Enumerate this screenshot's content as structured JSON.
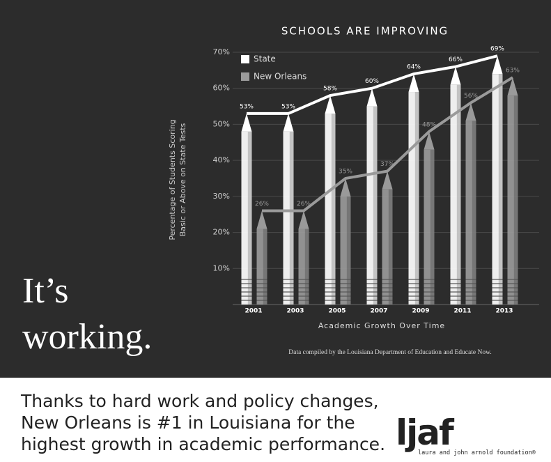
{
  "chart_data": {
    "type": "bar",
    "title": "SCHOOLS ARE IMPROVING",
    "ylabel": [
      "Percentage of Students Scoring",
      "Basic or Above on State Tests"
    ],
    "xlabel": "Academic Growth Over Time",
    "source": "Data compiled by the Louisiana Department of Education and Educate Now.",
    "categories": [
      "2001",
      "2003",
      "2005",
      "2007",
      "2009",
      "2011",
      "2013"
    ],
    "series": [
      {
        "name": "State",
        "color": "#ffffff",
        "values": [
          53,
          53,
          58,
          60,
          64,
          66,
          69
        ],
        "value_labels": [
          "53%",
          "53%",
          "58%",
          "60%",
          "64%",
          "66%",
          "69%"
        ]
      },
      {
        "name": "New Orleans",
        "color": "#9a9a9a",
        "values": [
          26,
          26,
          35,
          37,
          48,
          56,
          63
        ],
        "value_labels": [
          "26%",
          "26%",
          "35%",
          "37%",
          "48%",
          "56%",
          "63%"
        ]
      }
    ],
    "ylim": [
      0,
      70
    ],
    "yticks": [
      {
        "value": 10,
        "label": "10%"
      },
      {
        "value": 20,
        "label": "20%"
      },
      {
        "value": 30,
        "label": "30%"
      },
      {
        "value": 40,
        "label": "40%"
      },
      {
        "value": 50,
        "label": "50%"
      },
      {
        "value": 60,
        "label": "60%"
      },
      {
        "value": 70,
        "label": "70%"
      }
    ],
    "grid": true,
    "legend": "upper-left"
  },
  "headline": [
    "It’s",
    "working."
  ],
  "footer": [
    "Thanks to hard work and policy changes,",
    "New Orleans is #1 in Louisiana for the",
    "highest growth in academic performance."
  ],
  "logo": {
    "mark": "ljaf",
    "caption": "laura and john arnold foundation®"
  }
}
